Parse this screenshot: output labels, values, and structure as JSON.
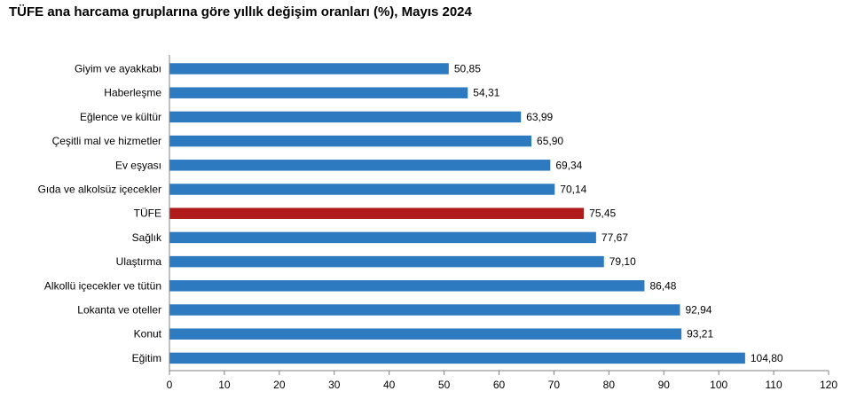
{
  "chart_data": {
    "type": "bar",
    "orientation": "horizontal",
    "title": "TÜFE ana harcama gruplarına göre yıllık değişim oranları (%), Mayıs 2024",
    "categories": [
      "Giyim ve ayakkabı",
      "Haberleşme",
      "Eğlence ve kültür",
      "Çeşitli mal ve hizmetler",
      "Ev eşyası",
      "Gıda ve alkolsüz içecekler",
      "TÜFE",
      "Sağlık",
      "Ulaştırma",
      "Alkollü içecekler ve tütün",
      "Lokanta ve oteller",
      "Konut",
      "Eğitim"
    ],
    "values": [
      50.85,
      54.31,
      63.99,
      65.9,
      69.34,
      70.14,
      75.45,
      77.67,
      79.1,
      86.48,
      92.94,
      93.21,
      104.8
    ],
    "value_labels": [
      "50,85",
      "54,31",
      "63,99",
      "65,90",
      "69,34",
      "70,14",
      "75,45",
      "77,67",
      "79,10",
      "86,48",
      "92,94",
      "93,21",
      "104,80"
    ],
    "xlim": [
      0,
      120
    ],
    "xticks": [
      0,
      10,
      20,
      30,
      40,
      50,
      60,
      70,
      80,
      90,
      100,
      110,
      120
    ],
    "xlabel": "",
    "ylabel": "",
    "grid": false,
    "legend": "none",
    "colors": {
      "bar": "#2e7ac0",
      "highlight": "#b01c1c",
      "axis": "#808080"
    },
    "highlight_category": "TÜFE"
  }
}
